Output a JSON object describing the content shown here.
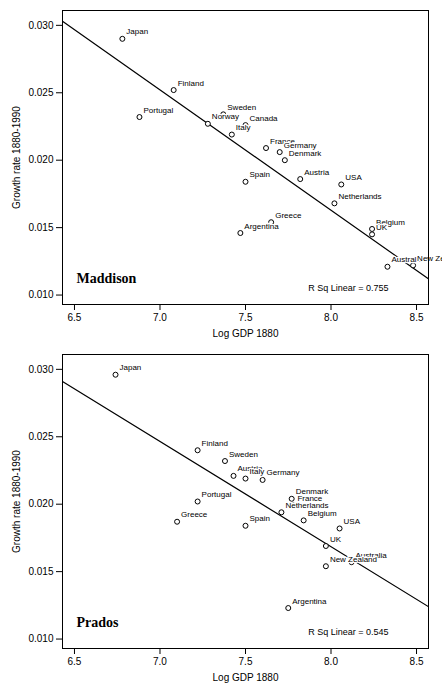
{
  "chart_data": [
    {
      "type": "scatter",
      "title": "Maddison",
      "annotation": "R Sq Linear = 0.755",
      "x_label": "Log GDP 1880",
      "y_label": "Growth rate 1880-1990",
      "color": "#000000",
      "marker": "circle",
      "xlim": [
        6.43,
        8.57
      ],
      "ylim": [
        0.0093,
        0.0311
      ],
      "xticks": [
        6.5,
        {
          "value": 7,
          "label": "7.0"
        },
        7.5,
        {
          "value": 8,
          "label": "8.0"
        },
        8.5
      ],
      "yticks": [
        {
          "value": 0.01,
          "label": "0.010"
        },
        0.015,
        {
          "value": 0.02,
          "label": "0.020"
        },
        0.025,
        {
          "value": 0.03,
          "label": "0.030"
        }
      ],
      "points": [
        {
          "label": "Japan",
          "x": 6.78,
          "y": 0.029
        },
        {
          "label": "Finland",
          "x": 7.08,
          "y": 0.0252
        },
        {
          "label": "Portugal",
          "x": 6.88,
          "y": 0.0232
        },
        {
          "label": "Sweden",
          "x": 7.37,
          "y": 0.0234
        },
        {
          "label": "Norway",
          "x": 7.28,
          "y": 0.0227
        },
        {
          "label": "Canada",
          "x": 7.5,
          "y": 0.0226
        },
        {
          "label": "Italy",
          "x": 7.42,
          "y": 0.0219
        },
        {
          "label": "France",
          "x": 7.62,
          "y": 0.0209
        },
        {
          "label": "Germany",
          "x": 7.7,
          "y": 0.0206
        },
        {
          "label": "Denmark",
          "x": 7.73,
          "y": 0.02
        },
        {
          "label": "Spain",
          "x": 7.5,
          "y": 0.0184
        },
        {
          "label": "Austria",
          "x": 7.82,
          "y": 0.0186
        },
        {
          "label": "USA",
          "x": 8.06,
          "y": 0.0182
        },
        {
          "label": "Netherlands",
          "x": 8.02,
          "y": 0.0168
        },
        {
          "label": "Greece",
          "x": 7.65,
          "y": 0.0154
        },
        {
          "label": "Argentina",
          "x": 7.47,
          "y": 0.0146
        },
        {
          "label": "Belgium",
          "x": 8.24,
          "y": 0.0149
        },
        {
          "label": "UK",
          "x": 8.24,
          "y": 0.0145
        },
        {
          "label": "Australia",
          "x": 8.33,
          "y": 0.0121
        },
        {
          "label": "New Zealand",
          "x": 8.48,
          "y": 0.0122
        }
      ],
      "fit_line": {
        "x": [
          6.43,
          8.57
        ],
        "y": [
          0.0303,
          0.0112
        ]
      }
    },
    {
      "type": "scatter",
      "title": "Prados",
      "annotation": "R Sq Linear = 0.545",
      "x_label": "Log GDP 1880",
      "y_label": "Growth rate 1880-1990",
      "color": "#000000",
      "marker": "circle",
      "xlim": [
        6.43,
        8.57
      ],
      "ylim": [
        0.0093,
        0.0311
      ],
      "xticks": [
        6.5,
        {
          "value": 7,
          "label": "7.0"
        },
        7.5,
        {
          "value": 8,
          "label": "8.0"
        },
        8.5
      ],
      "yticks": [
        {
          "value": 0.01,
          "label": "0.010"
        },
        0.015,
        {
          "value": 0.02,
          "label": "0.020"
        },
        0.025,
        {
          "value": 0.03,
          "label": "0.030"
        }
      ],
      "points": [
        {
          "label": "Japan",
          "x": 6.74,
          "y": 0.0296
        },
        {
          "label": "Finland",
          "x": 7.22,
          "y": 0.024
        },
        {
          "label": "Sweden",
          "x": 7.38,
          "y": 0.0232
        },
        {
          "label": "Austria",
          "x": 7.43,
          "y": 0.0221
        },
        {
          "label": "Italy",
          "x": 7.5,
          "y": 0.0219
        },
        {
          "label": "Germany",
          "x": 7.6,
          "y": 0.0218
        },
        {
          "label": "Denmark",
          "x": 7.77,
          "y": 0.0204
        },
        {
          "label": "France",
          "x": 7.78,
          "y": 0.0199
        },
        {
          "label": "Portugal",
          "x": 7.22,
          "y": 0.0202
        },
        {
          "label": "Greece",
          "x": 7.1,
          "y": 0.0187
        },
        {
          "label": "Netherlands",
          "x": 7.71,
          "y": 0.0194
        },
        {
          "label": "Spain",
          "x": 7.5,
          "y": 0.0184
        },
        {
          "label": "Belgium",
          "x": 7.84,
          "y": 0.0188
        },
        {
          "label": "USA",
          "x": 8.05,
          "y": 0.0182
        },
        {
          "label": "UK",
          "x": 7.97,
          "y": 0.0169
        },
        {
          "label": "Australia",
          "x": 8.12,
          "y": 0.0157
        },
        {
          "label": "New Zealand",
          "x": 7.97,
          "y": 0.0154
        },
        {
          "label": "Argentina",
          "x": 7.75,
          "y": 0.0123
        }
      ],
      "fit_line": {
        "x": [
          6.43,
          8.57
        ],
        "y": [
          0.0291,
          0.0124
        ]
      }
    }
  ]
}
